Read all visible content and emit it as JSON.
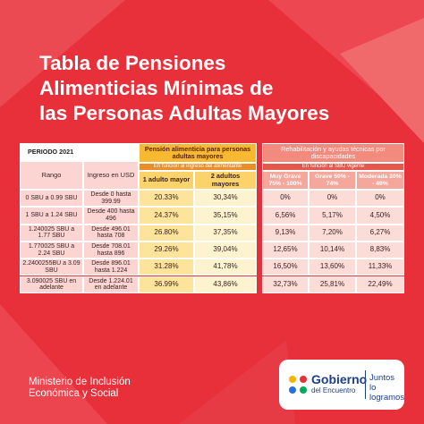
{
  "header": {
    "title_lines": [
      "Tabla de Pensiones",
      "Alimenticias Mínimas de",
      "las Personas Adultas Mayores"
    ]
  },
  "table": {
    "period": "PERIODO 2021",
    "groups": [
      {
        "title": "Pensión alimenticia para personas adultas mayores",
        "note": "En función al ingreso del alimentante"
      },
      {
        "title": "Rehabilitación y ayudas técnicas por discapacidades",
        "note": "En función al SBU vigente"
      }
    ],
    "columns": [
      "Rango",
      "Ingreso en USD",
      "1 adulto mayor",
      "2 adultos mayores",
      "Muy Grave 75% - 100%",
      "Grave 50% - 74%",
      "Moderada 30% - 49%"
    ],
    "rows": [
      [
        "0 SBU a 0.99 SBU",
        "Desde 0 hasta 399.99",
        "20.33%",
        "30,34%",
        "0%",
        "0%",
        "0%"
      ],
      [
        "1 SBU a 1.24 SBU",
        "Desde 400 hasta 496",
        "24.37%",
        "35,15%",
        "6,56%",
        "5,17%",
        "4,50%"
      ],
      [
        "1.240025 SBU a 1.77 SBU",
        "Desde 496.01 hasta 708",
        "26.80%",
        "37,35%",
        "9,13%",
        "7,20%",
        "6,27%"
      ],
      [
        "1.770025 SBU a 2.24 SBU",
        "Desde 708.01 hasta 896",
        "29.26%",
        "39,04%",
        "12,65%",
        "10,14%",
        "8,83%"
      ],
      [
        "2.2400255BU a 3.09 SBU",
        "Desde 896.01 hasta 1.224",
        "31.28%",
        "41,78%",
        "16,50%",
        "13,60%",
        "11,33%"
      ],
      [
        "3.090025 SBU en adelante",
        "Desde 1.224.01 en adelante",
        "36.99%",
        "43,86%",
        "32,73%",
        "25,81%",
        "22,49%"
      ]
    ]
  },
  "footer": {
    "ministry_lines": [
      "Ministerio de Inclusión",
      "Económica y Social"
    ],
    "logo_lines": [
      "Gobierno",
      "del Encuentro"
    ],
    "slogan_lines": [
      "Juntos",
      "lo logramos"
    ]
  }
}
